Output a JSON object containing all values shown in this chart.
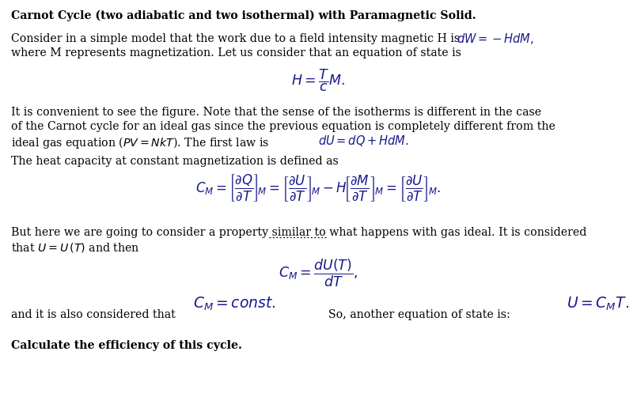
{
  "bg_color": "#ffffff",
  "fig_width": 8.05,
  "fig_height": 4.97,
  "dpi": 100,
  "title_bold": "Carnot Cycle (two adiabatic and two isothermal) with Paramagnetic Solid.",
  "line1": "Consider in a simple model that the work due to a field intensity magnetic H is",
  "line1_eq": "$dW = -HdM,$",
  "line2": "where M represents magnetization. Let us consider that an equation of state is",
  "eq_state": "$H = \\dfrac{T}{c}M.$",
  "para2_line1": "It is convenient to see the figure. Note that the sense of the isotherms is different in the case",
  "para2_line2": "of the Carnot cycle for an ideal gas since the previous equation is completely different from the",
  "para2_line3": "ideal gas equation ($PV = NkT$). The first law is",
  "para2_eq": "$dU = dQ + HdM.$",
  "para3": "The heat capacity at constant magnetization is defined as",
  "cm_eq": "$C_M = \\left[\\dfrac{\\partial Q}{\\partial T}\\right]_{\\!M} = \\left[\\dfrac{\\partial U}{\\partial T}\\right]_{\\!M} - H\\!\\left[\\dfrac{\\partial M}{\\partial T}\\right]_{\\!M} = \\left[\\dfrac{\\partial U}{\\partial T}\\right]_{\\!M}.$",
  "para4_line1": "But here we are going to consider a property similar to what happens with gas ideal. It is considered",
  "para4_line2": "that $U = U\\,(T)$ and then",
  "cm_eq2": "$C_M = \\dfrac{dU(T)}{dT},$",
  "cm_const": "$C_M = const.$",
  "and_line": "and it is also considered that",
  "so_line": "So, another equation of state is:",
  "u_eq": "$U = C_MT.$",
  "final_bold": "Calculate the efficiency of this cycle.",
  "text_color": "#000000",
  "eq_color": "#1a1a8c",
  "fs": 10.2,
  "fs_eq": 10.5
}
